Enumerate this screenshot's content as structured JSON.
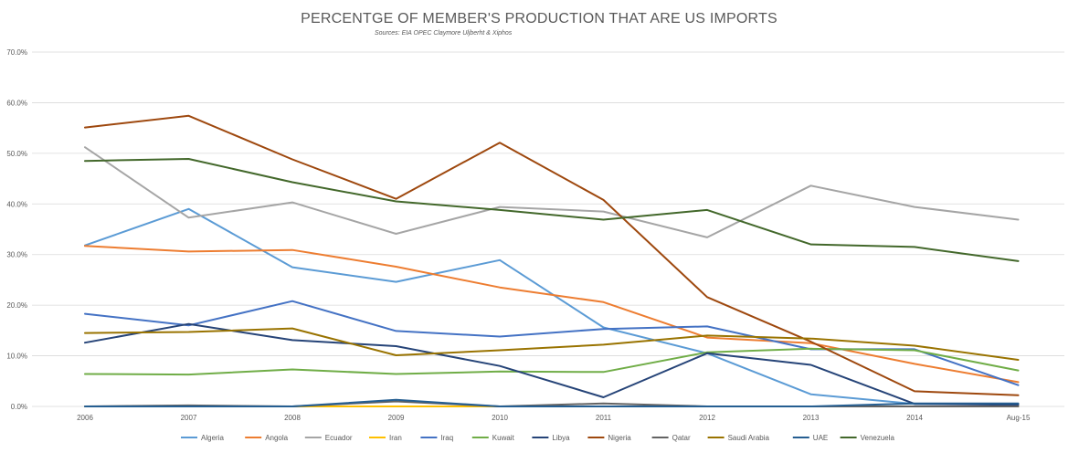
{
  "chart_data": {
    "type": "line",
    "title": "PERCENTGE OF MEMBER'S PRODUCTION THAT ARE US IMPORTS",
    "subtitle": "Sources: EIA OPEC Claymore Uljberht & Xiphos",
    "xlabel": "",
    "ylabel": "",
    "categories": [
      "2006",
      "2007",
      "2008",
      "2009",
      "2010",
      "2011",
      "2012",
      "2013",
      "2014",
      "Aug-15"
    ],
    "ylim": [
      0,
      70
    ],
    "yticks": [
      "0.0%",
      "10.0%",
      "20.0%",
      "30.0%",
      "40.0%",
      "50.0%",
      "60.0%",
      "70.0%"
    ],
    "grid": true,
    "legend_position": "bottom",
    "series": [
      {
        "name": "Algeria",
        "color": "#5b9bd5",
        "values": [
          31.8,
          39.0,
          27.5,
          24.6,
          28.9,
          15.6,
          10.5,
          2.4,
          0.5,
          0.4
        ]
      },
      {
        "name": "Angola",
        "color": "#ed7d31",
        "values": [
          31.7,
          30.6,
          30.9,
          27.6,
          23.5,
          20.6,
          13.6,
          12.5,
          8.4,
          4.8
        ]
      },
      {
        "name": "Ecuador",
        "color": "#a5a5a5",
        "values": [
          51.2,
          37.3,
          40.3,
          34.1,
          39.4,
          38.5,
          33.4,
          43.6,
          39.4,
          36.9
        ]
      },
      {
        "name": "Iran",
        "color": "#ffc000",
        "values": [
          0.0,
          0.0,
          0.0,
          0.0,
          0.0,
          0.0,
          0.0,
          0.0,
          0.0,
          0.0
        ]
      },
      {
        "name": "Iraq",
        "color": "#4472c4",
        "values": [
          18.3,
          16.0,
          20.8,
          14.9,
          13.8,
          15.3,
          15.8,
          11.3,
          11.3,
          4.2
        ]
      },
      {
        "name": "Kuwait",
        "color": "#70ad47",
        "values": [
          6.4,
          6.3,
          7.3,
          6.4,
          6.9,
          6.8,
          10.7,
          11.4,
          11.1,
          7.1
        ]
      },
      {
        "name": "Libya",
        "color": "#264478",
        "values": [
          12.6,
          16.3,
          13.1,
          11.9,
          8.0,
          1.8,
          10.5,
          8.2,
          0.5,
          0.3
        ]
      },
      {
        "name": "Nigeria",
        "color": "#9e480e",
        "values": [
          55.1,
          57.4,
          48.8,
          41.0,
          52.1,
          40.8,
          21.6,
          12.8,
          3.0,
          2.2
        ]
      },
      {
        "name": "Qatar",
        "color": "#636363",
        "values": [
          0.0,
          0.2,
          0.0,
          1.0,
          0.0,
          0.6,
          0.0,
          0.0,
          0.0,
          0.0
        ]
      },
      {
        "name": "Saudi Arabia",
        "color": "#997300",
        "values": [
          14.5,
          14.7,
          15.4,
          10.1,
          11.1,
          12.2,
          14.0,
          13.4,
          12.0,
          9.2
        ]
      },
      {
        "name": "UAE",
        "color": "#255e91",
        "values": [
          0.0,
          0.0,
          0.0,
          1.3,
          0.0,
          0.0,
          0.0,
          0.0,
          0.6,
          0.6
        ]
      },
      {
        "name": "Venezuela",
        "color": "#43682b",
        "values": [
          48.5,
          48.9,
          44.3,
          40.5,
          38.8,
          36.9,
          38.8,
          32.0,
          31.5,
          28.7
        ]
      }
    ]
  }
}
